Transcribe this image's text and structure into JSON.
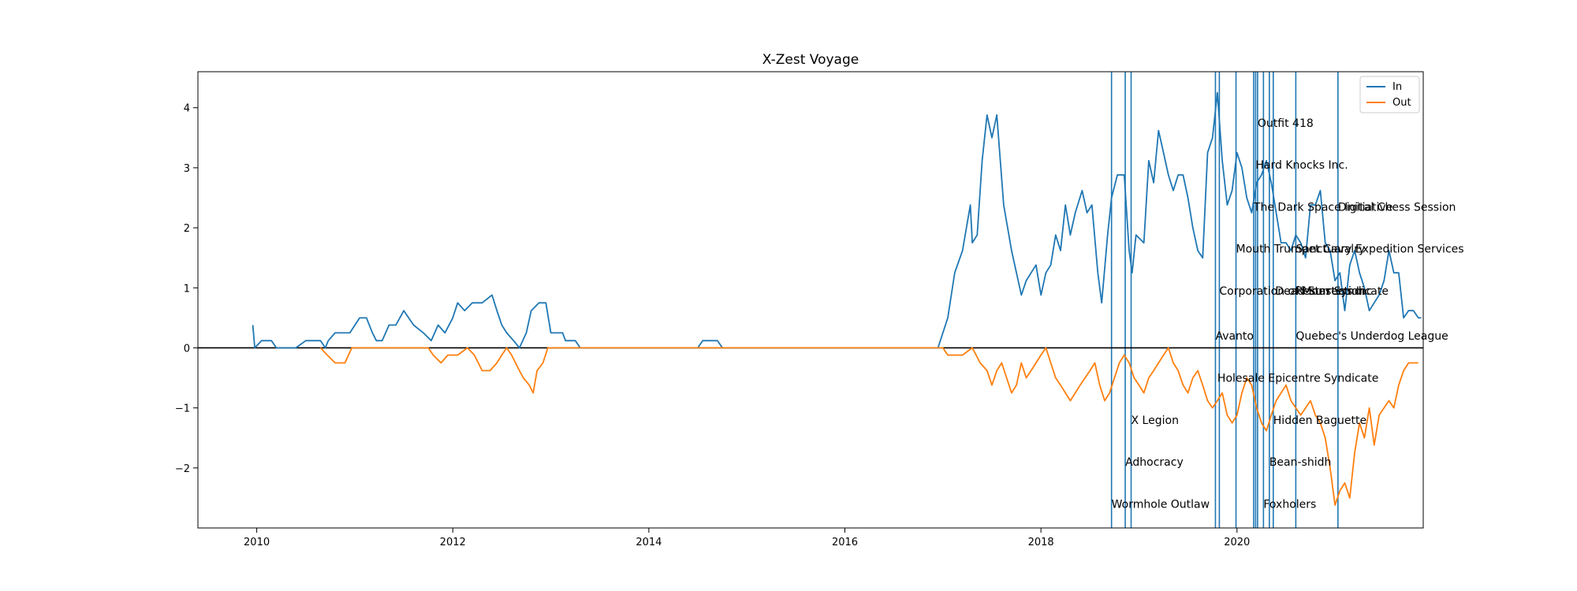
{
  "chart_data": {
    "type": "line",
    "title": "X-Zest Voyage",
    "xlabel": "",
    "ylabel": "",
    "xlim": [
      2009.4,
      2021.9
    ],
    "ylim": [
      -3.0,
      4.6
    ],
    "x_ticks": [
      {
        "value": 2010,
        "label": "2010"
      },
      {
        "value": 2012,
        "label": "2012"
      },
      {
        "value": 2014,
        "label": "2014"
      },
      {
        "value": 2016,
        "label": "2016"
      },
      {
        "value": 2018,
        "label": "2018"
      },
      {
        "value": 2020,
        "label": "2020"
      }
    ],
    "y_ticks": [
      {
        "value": -2,
        "label": "−2"
      },
      {
        "value": -1,
        "label": "−1"
      },
      {
        "value": 0,
        "label": "0"
      },
      {
        "value": 1,
        "label": "1"
      },
      {
        "value": 2,
        "label": "2"
      },
      {
        "value": 3,
        "label": "3"
      },
      {
        "value": 4,
        "label": "4"
      }
    ],
    "grid": false,
    "legend_position": "top-right",
    "zero_line": true,
    "colors": {
      "In": "#1f77b4",
      "Out": "#ff7f0e",
      "events": "#1f77b4",
      "zero_line": "#000000"
    },
    "series": [
      {
        "name": "In",
        "points": [
          [
            2009.96,
            0.38
          ],
          [
            2009.98,
            0.0
          ],
          [
            2010.05,
            0.12
          ],
          [
            2010.15,
            0.12
          ],
          [
            2010.2,
            0.0
          ],
          [
            2010.4,
            0.0
          ],
          [
            2010.5,
            0.12
          ],
          [
            2010.65,
            0.12
          ],
          [
            2010.7,
            0.0
          ],
          [
            2010.73,
            0.12
          ],
          [
            2010.8,
            0.25
          ],
          [
            2010.95,
            0.25
          ],
          [
            2011.05,
            0.5
          ],
          [
            2011.12,
            0.5
          ],
          [
            2011.18,
            0.25
          ],
          [
            2011.22,
            0.12
          ],
          [
            2011.28,
            0.12
          ],
          [
            2011.35,
            0.38
          ],
          [
            2011.42,
            0.38
          ],
          [
            2011.5,
            0.62
          ],
          [
            2011.6,
            0.38
          ],
          [
            2011.7,
            0.25
          ],
          [
            2011.78,
            0.12
          ],
          [
            2011.85,
            0.38
          ],
          [
            2011.92,
            0.25
          ],
          [
            2012.0,
            0.5
          ],
          [
            2012.05,
            0.75
          ],
          [
            2012.12,
            0.62
          ],
          [
            2012.2,
            0.75
          ],
          [
            2012.3,
            0.75
          ],
          [
            2012.4,
            0.88
          ],
          [
            2012.45,
            0.62
          ],
          [
            2012.5,
            0.38
          ],
          [
            2012.55,
            0.25
          ],
          [
            2012.62,
            0.12
          ],
          [
            2012.68,
            0.0
          ],
          [
            2012.75,
            0.25
          ],
          [
            2012.8,
            0.62
          ],
          [
            2012.88,
            0.75
          ],
          [
            2012.95,
            0.75
          ],
          [
            2013.0,
            0.25
          ],
          [
            2013.12,
            0.25
          ],
          [
            2013.15,
            0.12
          ],
          [
            2013.25,
            0.12
          ],
          [
            2013.3,
            0.0
          ],
          [
            2014.5,
            0.0
          ],
          [
            2014.55,
            0.12
          ],
          [
            2014.7,
            0.12
          ],
          [
            2014.75,
            0.0
          ],
          [
            2016.95,
            0.0
          ],
          [
            2017.0,
            0.25
          ],
          [
            2017.05,
            0.5
          ],
          [
            2017.12,
            1.25
          ],
          [
            2017.2,
            1.62
          ],
          [
            2017.28,
            2.38
          ],
          [
            2017.3,
            1.75
          ],
          [
            2017.35,
            1.88
          ],
          [
            2017.4,
            3.12
          ],
          [
            2017.45,
            3.88
          ],
          [
            2017.5,
            3.5
          ],
          [
            2017.55,
            3.88
          ],
          [
            2017.62,
            2.38
          ],
          [
            2017.7,
            1.62
          ],
          [
            2017.75,
            1.25
          ],
          [
            2017.8,
            0.88
          ],
          [
            2017.85,
            1.12
          ],
          [
            2017.9,
            1.25
          ],
          [
            2017.95,
            1.38
          ],
          [
            2018.0,
            0.88
          ],
          [
            2018.05,
            1.25
          ],
          [
            2018.1,
            1.38
          ],
          [
            2018.15,
            1.88
          ],
          [
            2018.2,
            1.62
          ],
          [
            2018.25,
            2.38
          ],
          [
            2018.3,
            1.88
          ],
          [
            2018.35,
            2.25
          ],
          [
            2018.42,
            2.62
          ],
          [
            2018.47,
            2.25
          ],
          [
            2018.52,
            2.38
          ],
          [
            2018.58,
            1.25
          ],
          [
            2018.62,
            0.75
          ],
          [
            2018.68,
            1.88
          ],
          [
            2018.72,
            2.5
          ],
          [
            2018.78,
            2.88
          ],
          [
            2018.85,
            2.88
          ],
          [
            2018.9,
            1.62
          ],
          [
            2018.93,
            1.25
          ],
          [
            2018.97,
            1.88
          ],
          [
            2019.05,
            1.75
          ],
          [
            2019.1,
            3.12
          ],
          [
            2019.15,
            2.75
          ],
          [
            2019.2,
            3.62
          ],
          [
            2019.25,
            3.25
          ],
          [
            2019.3,
            2.88
          ],
          [
            2019.35,
            2.62
          ],
          [
            2019.4,
            2.88
          ],
          [
            2019.45,
            2.88
          ],
          [
            2019.5,
            2.5
          ],
          [
            2019.55,
            2.0
          ],
          [
            2019.6,
            1.62
          ],
          [
            2019.65,
            1.5
          ],
          [
            2019.7,
            3.25
          ],
          [
            2019.75,
            3.5
          ],
          [
            2019.8,
            4.25
          ],
          [
            2019.85,
            3.12
          ],
          [
            2019.9,
            2.38
          ],
          [
            2019.95,
            2.62
          ],
          [
            2020.0,
            3.25
          ],
          [
            2020.05,
            3.0
          ],
          [
            2020.1,
            2.5
          ],
          [
            2020.15,
            2.25
          ],
          [
            2020.2,
            2.75
          ],
          [
            2020.25,
            2.88
          ],
          [
            2020.3,
            3.12
          ],
          [
            2020.35,
            2.75
          ],
          [
            2020.4,
            2.25
          ],
          [
            2020.45,
            1.75
          ],
          [
            2020.5,
            1.75
          ],
          [
            2020.55,
            1.62
          ],
          [
            2020.6,
            1.88
          ],
          [
            2020.65,
            1.75
          ],
          [
            2020.7,
            1.5
          ],
          [
            2020.75,
            2.38
          ],
          [
            2020.8,
            2.38
          ],
          [
            2020.85,
            2.62
          ],
          [
            2020.9,
            1.75
          ],
          [
            2020.95,
            1.62
          ],
          [
            2021.0,
            1.12
          ],
          [
            2021.05,
            1.25
          ],
          [
            2021.1,
            0.62
          ],
          [
            2021.15,
            1.38
          ],
          [
            2021.2,
            1.62
          ],
          [
            2021.25,
            1.25
          ],
          [
            2021.3,
            1.0
          ],
          [
            2021.35,
            0.62
          ],
          [
            2021.4,
            0.75
          ],
          [
            2021.45,
            0.88
          ],
          [
            2021.5,
            1.12
          ],
          [
            2021.55,
            1.62
          ],
          [
            2021.6,
            1.25
          ],
          [
            2021.65,
            1.25
          ],
          [
            2021.7,
            0.5
          ],
          [
            2021.75,
            0.62
          ],
          [
            2021.8,
            0.62
          ],
          [
            2021.85,
            0.5
          ],
          [
            2021.88,
            0.5
          ]
        ]
      },
      {
        "name": "Out",
        "points": [
          [
            2010.65,
            0.0
          ],
          [
            2010.72,
            -0.12
          ],
          [
            2010.8,
            -0.25
          ],
          [
            2010.9,
            -0.25
          ],
          [
            2010.97,
            0.0
          ],
          [
            2011.75,
            0.0
          ],
          [
            2011.8,
            -0.12
          ],
          [
            2011.88,
            -0.25
          ],
          [
            2011.95,
            -0.12
          ],
          [
            2012.05,
            -0.12
          ],
          [
            2012.15,
            0.0
          ],
          [
            2012.22,
            -0.12
          ],
          [
            2012.3,
            -0.38
          ],
          [
            2012.38,
            -0.38
          ],
          [
            2012.45,
            -0.25
          ],
          [
            2012.5,
            -0.12
          ],
          [
            2012.55,
            0.0
          ],
          [
            2012.6,
            -0.12
          ],
          [
            2012.68,
            -0.38
          ],
          [
            2012.72,
            -0.5
          ],
          [
            2012.78,
            -0.62
          ],
          [
            2012.82,
            -0.75
          ],
          [
            2012.86,
            -0.38
          ],
          [
            2012.92,
            -0.25
          ],
          [
            2012.97,
            0.0
          ],
          [
            2017.0,
            0.0
          ],
          [
            2017.05,
            -0.12
          ],
          [
            2017.2,
            -0.12
          ],
          [
            2017.3,
            0.0
          ],
          [
            2017.38,
            -0.25
          ],
          [
            2017.45,
            -0.38
          ],
          [
            2017.5,
            -0.62
          ],
          [
            2017.55,
            -0.38
          ],
          [
            2017.6,
            -0.25
          ],
          [
            2017.65,
            -0.5
          ],
          [
            2017.7,
            -0.75
          ],
          [
            2017.75,
            -0.62
          ],
          [
            2017.8,
            -0.25
          ],
          [
            2017.85,
            -0.5
          ],
          [
            2017.9,
            -0.38
          ],
          [
            2017.95,
            -0.25
          ],
          [
            2018.0,
            -0.12
          ],
          [
            2018.05,
            0.0
          ],
          [
            2018.1,
            -0.25
          ],
          [
            2018.15,
            -0.5
          ],
          [
            2018.2,
            -0.62
          ],
          [
            2018.25,
            -0.75
          ],
          [
            2018.3,
            -0.88
          ],
          [
            2018.35,
            -0.75
          ],
          [
            2018.4,
            -0.62
          ],
          [
            2018.45,
            -0.5
          ],
          [
            2018.5,
            -0.38
          ],
          [
            2018.55,
            -0.25
          ],
          [
            2018.6,
            -0.62
          ],
          [
            2018.65,
            -0.88
          ],
          [
            2018.7,
            -0.75
          ],
          [
            2018.75,
            -0.5
          ],
          [
            2018.8,
            -0.25
          ],
          [
            2018.85,
            -0.12
          ],
          [
            2018.9,
            -0.25
          ],
          [
            2018.95,
            -0.5
          ],
          [
            2019.0,
            -0.62
          ],
          [
            2019.05,
            -0.75
          ],
          [
            2019.1,
            -0.5
          ],
          [
            2019.15,
            -0.38
          ],
          [
            2019.2,
            -0.25
          ],
          [
            2019.25,
            -0.12
          ],
          [
            2019.3,
            0.0
          ],
          [
            2019.35,
            -0.25
          ],
          [
            2019.4,
            -0.38
          ],
          [
            2019.45,
            -0.62
          ],
          [
            2019.5,
            -0.75
          ],
          [
            2019.55,
            -0.5
          ],
          [
            2019.6,
            -0.38
          ],
          [
            2019.65,
            -0.62
          ],
          [
            2019.7,
            -0.88
          ],
          [
            2019.75,
            -1.0
          ],
          [
            2019.8,
            -0.88
          ],
          [
            2019.85,
            -0.75
          ],
          [
            2019.9,
            -1.12
          ],
          [
            2019.95,
            -1.25
          ],
          [
            2020.0,
            -1.12
          ],
          [
            2020.05,
            -0.75
          ],
          [
            2020.1,
            -0.5
          ],
          [
            2020.15,
            -0.62
          ],
          [
            2020.2,
            -1.0
          ],
          [
            2020.25,
            -1.25
          ],
          [
            2020.3,
            -1.38
          ],
          [
            2020.35,
            -1.12
          ],
          [
            2020.4,
            -0.88
          ],
          [
            2020.45,
            -0.75
          ],
          [
            2020.5,
            -0.62
          ],
          [
            2020.55,
            -0.88
          ],
          [
            2020.6,
            -1.0
          ],
          [
            2020.65,
            -1.12
          ],
          [
            2020.7,
            -1.0
          ],
          [
            2020.75,
            -0.88
          ],
          [
            2020.8,
            -1.12
          ],
          [
            2020.85,
            -1.25
          ],
          [
            2020.9,
            -1.5
          ],
          [
            2020.95,
            -2.0
          ],
          [
            2021.0,
            -2.62
          ],
          [
            2021.05,
            -2.38
          ],
          [
            2021.1,
            -2.25
          ],
          [
            2021.15,
            -2.5
          ],
          [
            2021.2,
            -1.75
          ],
          [
            2021.25,
            -1.25
          ],
          [
            2021.3,
            -1.5
          ],
          [
            2021.35,
            -1.0
          ],
          [
            2021.4,
            -1.62
          ],
          [
            2021.45,
            -1.12
          ],
          [
            2021.5,
            -1.0
          ],
          [
            2021.55,
            -0.88
          ],
          [
            2021.6,
            -1.0
          ],
          [
            2021.65,
            -0.62
          ],
          [
            2021.7,
            -0.38
          ],
          [
            2021.75,
            -0.25
          ],
          [
            2021.8,
            -0.25
          ],
          [
            2021.85,
            -0.25
          ]
        ]
      }
    ],
    "events": [
      {
        "x": 2018.72,
        "label": "Wormhole Outlaw",
        "y": -2.6
      },
      {
        "x": 2018.86,
        "label": "Adhocracy",
        "y": -1.9
      },
      {
        "x": 2018.92,
        "label": "X Legion",
        "y": -1.2
      },
      {
        "x": 2019.78,
        "label": "Avanto",
        "y": 0.2
      },
      {
        "x": 2019.82,
        "label": "Corporation of Monsters Inc",
        "y": 0.95
      },
      {
        "x": 2019.99,
        "label": "Mouth Trumpet Cavalry",
        "y": 1.65
      },
      {
        "x": 2020.17,
        "label": "The Dark Space Initiative",
        "y": 2.35
      },
      {
        "x": 2020.19,
        "label": "Hard Knocks Inc.",
        "y": 3.05
      },
      {
        "x": 2020.21,
        "label": "Outfit 418",
        "y": 3.75
      },
      {
        "x": 2020.27,
        "label": "Foxholers",
        "y": -2.6
      },
      {
        "x": 2020.33,
        "label": "Bean-shidh",
        "y": -1.9
      },
      {
        "x": 2020.37,
        "label": "Hidden Baguette",
        "y": -1.2
      },
      {
        "x": 2019.8,
        "label": "Holesale Epicentre Syndicate",
        "y": -0.5
      },
      {
        "x": 2020.6,
        "label": "Quebec's Underdog League",
        "y": 0.2
      },
      {
        "x": 2020.39,
        "label": "Dead Star Syndicate",
        "y": 0.95
      },
      {
        "x": 2020.6,
        "label": "Resurrection",
        "y": 0.95
      },
      {
        "x": 2020.6,
        "label": "Sanctuary Expedition Services",
        "y": 1.65
      },
      {
        "x": 2021.03,
        "label": "Digital Chess Session",
        "y": 2.35
      }
    ],
    "event_lines": [
      2018.72,
      2018.86,
      2018.92,
      2019.78,
      2019.82,
      2019.99,
      2020.17,
      2020.19,
      2020.21,
      2020.27,
      2020.33,
      2020.37,
      2020.6,
      2021.03
    ]
  }
}
